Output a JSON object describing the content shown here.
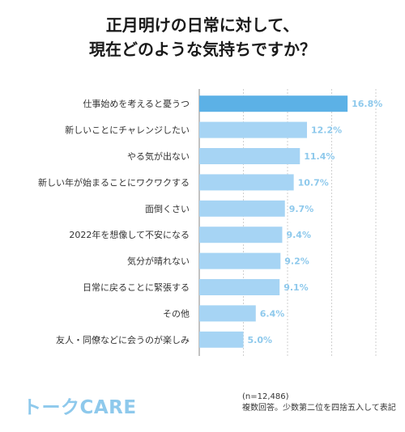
{
  "chart_data": {
    "type": "bar",
    "orientation": "horizontal",
    "title": "正月明けの日常に対して、\n現在どのような気持ちですか？",
    "title_lines": [
      "正月明けの日常に対して、",
      "現在どのような気持ちですか？"
    ],
    "categories": [
      "仕事始めを考えると憂うつ",
      "新しいことにチャレンジしたい",
      "やる気が出ない",
      "新しい年が始まることにワクワクする",
      "面倒くさい",
      "2022年を想像して不安になる",
      "気分が晴れない",
      "日常に戻ることに緊張する",
      "その他",
      "友人・同僚などに会うのが楽しみ"
    ],
    "values": [
      16.8,
      12.2,
      11.4,
      10.7,
      9.7,
      9.4,
      9.2,
      9.1,
      6.4,
      5.0
    ],
    "value_labels": [
      "16.8%",
      "12.2%",
      "11.4%",
      "10.7%",
      "9.7%",
      "9.4%",
      "9.2%",
      "9.1%",
      "6.4%",
      "5.0%"
    ],
    "xlim": [
      0,
      20
    ],
    "grid": true,
    "highlight_index": 0,
    "colors": {
      "highlight_bar": "#5cb1e6",
      "bar": "#a6d4f4",
      "label": "#8ec9ec",
      "grid": "#cfcfcf",
      "axis": "#9a9a9a"
    }
  },
  "footer": {
    "logo": "トークCARE",
    "note_lines": [
      "(n=12,486)",
      "複数回答。少数第二位を四捨五入して表記"
    ]
  }
}
